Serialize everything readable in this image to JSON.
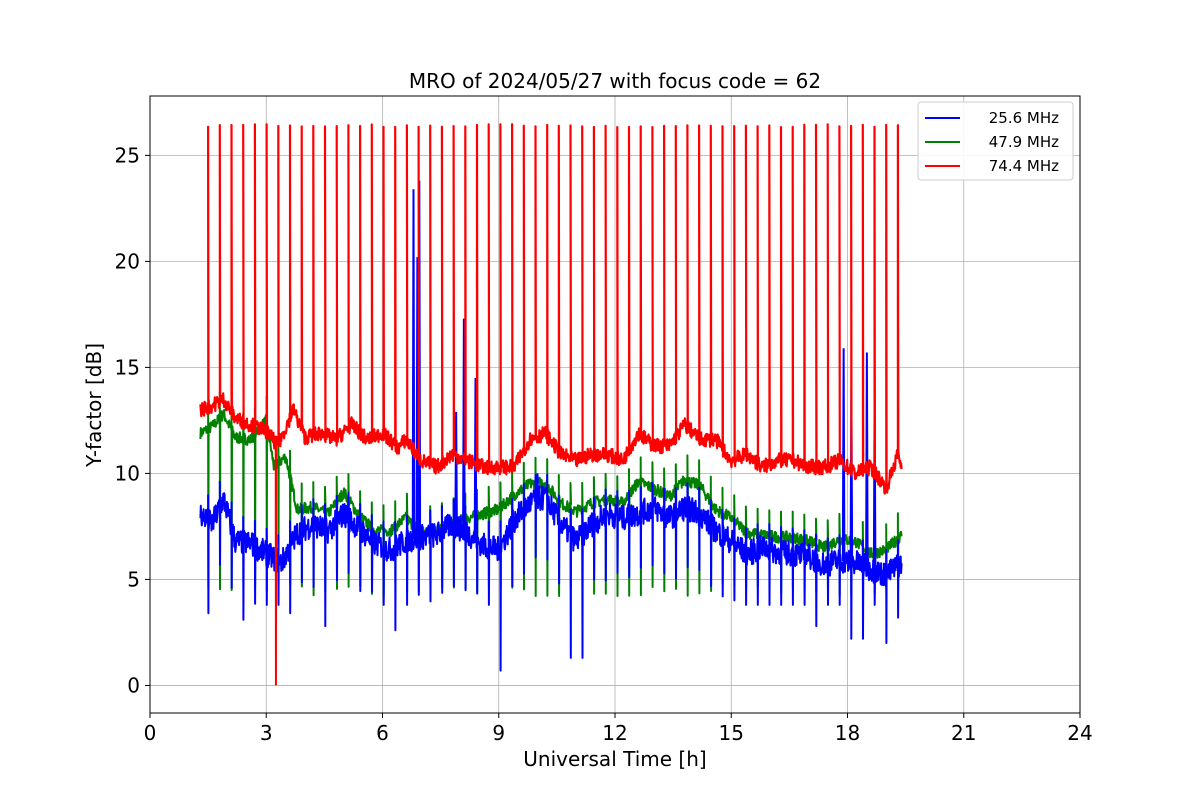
{
  "chart_data": {
    "type": "line",
    "title": "MRO of 2024/05/27 with focus code = 62",
    "xlabel": "Universal Time [h]",
    "ylabel": "Y-factor [dB]",
    "xlim": [
      0,
      24
    ],
    "ylim": [
      -1.3,
      27.8
    ],
    "xticks": [
      0,
      3,
      6,
      9,
      12,
      15,
      18,
      21,
      24
    ],
    "yticks": [
      0,
      5,
      10,
      15,
      20,
      25
    ],
    "grid": true,
    "legend_position": "top-right",
    "series": [
      {
        "name": "25.6 MHz",
        "color": "#0000ff",
        "baseline": [
          [
            1.3,
            8.1
          ],
          [
            1.6,
            7.6
          ],
          [
            1.9,
            8.8
          ],
          [
            2.2,
            6.8
          ],
          [
            2.6,
            6.7
          ],
          [
            3.0,
            6.2
          ],
          [
            3.4,
            5.8
          ],
          [
            3.8,
            7.2
          ],
          [
            4.2,
            7.6
          ],
          [
            4.6,
            7.3
          ],
          [
            5.0,
            8.1
          ],
          [
            5.4,
            7.4
          ],
          [
            5.8,
            6.7
          ],
          [
            6.2,
            6.4
          ],
          [
            6.6,
            6.8
          ],
          [
            7.0,
            7.0
          ],
          [
            7.4,
            7.1
          ],
          [
            7.8,
            7.6
          ],
          [
            8.2,
            7.2
          ],
          [
            8.6,
            6.6
          ],
          [
            9.0,
            6.4
          ],
          [
            9.4,
            7.8
          ],
          [
            9.8,
            8.6
          ],
          [
            10.2,
            8.9
          ],
          [
            10.6,
            7.6
          ],
          [
            11.0,
            6.8
          ],
          [
            11.4,
            7.6
          ],
          [
            11.8,
            8.1
          ],
          [
            12.2,
            7.9
          ],
          [
            12.6,
            8.1
          ],
          [
            13.0,
            8.4
          ],
          [
            13.4,
            7.9
          ],
          [
            13.8,
            8.4
          ],
          [
            14.2,
            8.1
          ],
          [
            14.6,
            7.3
          ],
          [
            15.0,
            6.8
          ],
          [
            15.4,
            6.2
          ],
          [
            15.8,
            6.5
          ],
          [
            16.2,
            6.3
          ],
          [
            16.6,
            6.2
          ],
          [
            17.0,
            6.1
          ],
          [
            17.4,
            5.7
          ],
          [
            17.8,
            5.9
          ],
          [
            18.2,
            5.8
          ],
          [
            18.6,
            5.5
          ],
          [
            19.0,
            5.2
          ],
          [
            19.4,
            5.8
          ]
        ],
        "dips": [
          [
            1.5,
            3.4
          ],
          [
            2.3,
            3.7
          ],
          [
            2.5,
            3.1
          ],
          [
            3.5,
            3.4
          ],
          [
            4.4,
            2.8
          ],
          [
            6.3,
            2.6
          ],
          [
            8.95,
            0.7
          ],
          [
            10.8,
            0.0
          ],
          [
            11.0,
            1.3
          ],
          [
            17.3,
            2.8
          ],
          [
            18.25,
            2.2
          ],
          [
            19.0,
            2.0
          ],
          [
            19.3,
            3.2
          ]
        ],
        "spikes": [
          [
            6.8,
            23.4
          ],
          [
            6.9,
            20.2
          ],
          [
            6.95,
            23.8
          ],
          [
            7.9,
            12.9
          ],
          [
            8.1,
            17.3
          ],
          [
            8.4,
            14.5
          ],
          [
            10.0,
            10.0
          ],
          [
            17.9,
            15.9
          ],
          [
            18.1,
            14.0
          ],
          [
            18.5,
            15.7
          ],
          [
            18.7,
            14.0
          ]
        ]
      },
      {
        "name": "47.9 MHz",
        "color": "#008000",
        "baseline": [
          [
            1.3,
            11.9
          ],
          [
            1.6,
            12.2
          ],
          [
            1.9,
            12.8
          ],
          [
            2.2,
            11.7
          ],
          [
            2.6,
            11.6
          ],
          [
            3.0,
            12.5
          ],
          [
            3.2,
            10.3
          ],
          [
            3.5,
            10.8
          ],
          [
            3.8,
            8.3
          ],
          [
            4.2,
            8.4
          ],
          [
            4.6,
            8.1
          ],
          [
            5.0,
            9.1
          ],
          [
            5.4,
            8.0
          ],
          [
            5.8,
            7.3
          ],
          [
            6.2,
            7.3
          ],
          [
            6.6,
            7.9
          ],
          [
            7.0,
            7.2
          ],
          [
            7.4,
            7.3
          ],
          [
            7.8,
            7.6
          ],
          [
            8.2,
            7.9
          ],
          [
            8.6,
            8.1
          ],
          [
            9.0,
            8.3
          ],
          [
            9.4,
            9.0
          ],
          [
            9.8,
            9.5
          ],
          [
            10.2,
            9.6
          ],
          [
            10.6,
            8.6
          ],
          [
            11.0,
            8.2
          ],
          [
            11.4,
            8.6
          ],
          [
            11.8,
            8.8
          ],
          [
            12.2,
            8.6
          ],
          [
            12.6,
            9.6
          ],
          [
            13.0,
            9.3
          ],
          [
            13.4,
            8.9
          ],
          [
            13.8,
            9.7
          ],
          [
            14.2,
            9.4
          ],
          [
            14.6,
            8.3
          ],
          [
            15.0,
            7.9
          ],
          [
            15.4,
            7.2
          ],
          [
            15.8,
            7.1
          ],
          [
            16.2,
            7.0
          ],
          [
            16.6,
            7.0
          ],
          [
            17.0,
            6.8
          ],
          [
            17.4,
            6.5
          ],
          [
            17.8,
            6.9
          ],
          [
            18.2,
            6.8
          ],
          [
            18.6,
            6.2
          ],
          [
            19.0,
            6.4
          ],
          [
            19.4,
            7.1
          ]
        ],
        "dip_level": 4.5
      },
      {
        "name": "74.4 MHz",
        "color": "#ff0000",
        "baseline": [
          [
            1.3,
            13.0
          ],
          [
            1.6,
            13.2
          ],
          [
            1.9,
            13.5
          ],
          [
            2.2,
            12.6
          ],
          [
            2.6,
            12.3
          ],
          [
            3.0,
            12.0
          ],
          [
            3.3,
            11.3
          ],
          [
            3.7,
            13.0
          ],
          [
            4.0,
            11.7
          ],
          [
            4.4,
            11.9
          ],
          [
            4.8,
            11.6
          ],
          [
            5.2,
            12.3
          ],
          [
            5.6,
            11.6
          ],
          [
            6.0,
            11.9
          ],
          [
            6.4,
            11.2
          ],
          [
            6.6,
            11.6
          ],
          [
            7.0,
            10.6
          ],
          [
            7.4,
            10.3
          ],
          [
            7.8,
            10.9
          ],
          [
            8.2,
            10.6
          ],
          [
            8.6,
            10.3
          ],
          [
            9.0,
            10.3
          ],
          [
            9.4,
            10.3
          ],
          [
            9.8,
            11.6
          ],
          [
            10.2,
            11.9
          ],
          [
            10.6,
            10.9
          ],
          [
            11.0,
            10.6
          ],
          [
            11.4,
            10.9
          ],
          [
            11.8,
            10.9
          ],
          [
            12.2,
            10.6
          ],
          [
            12.6,
            11.9
          ],
          [
            13.0,
            11.3
          ],
          [
            13.4,
            11.3
          ],
          [
            13.8,
            12.3
          ],
          [
            14.2,
            11.6
          ],
          [
            14.6,
            11.6
          ],
          [
            15.0,
            10.6
          ],
          [
            15.4,
            10.9
          ],
          [
            15.8,
            10.3
          ],
          [
            16.2,
            10.6
          ],
          [
            16.6,
            10.6
          ],
          [
            17.0,
            10.3
          ],
          [
            17.4,
            10.3
          ],
          [
            17.8,
            10.6
          ],
          [
            18.2,
            10.0
          ],
          [
            18.6,
            10.3
          ],
          [
            19.0,
            9.3
          ],
          [
            19.3,
            10.9
          ],
          [
            19.4,
            10.3
          ]
        ],
        "spike_level": 26.4,
        "spike_start": 1.5,
        "spike_end": 19.3,
        "spike_count": 60,
        "outlier": [
          3.25,
          0.0
        ]
      }
    ]
  }
}
